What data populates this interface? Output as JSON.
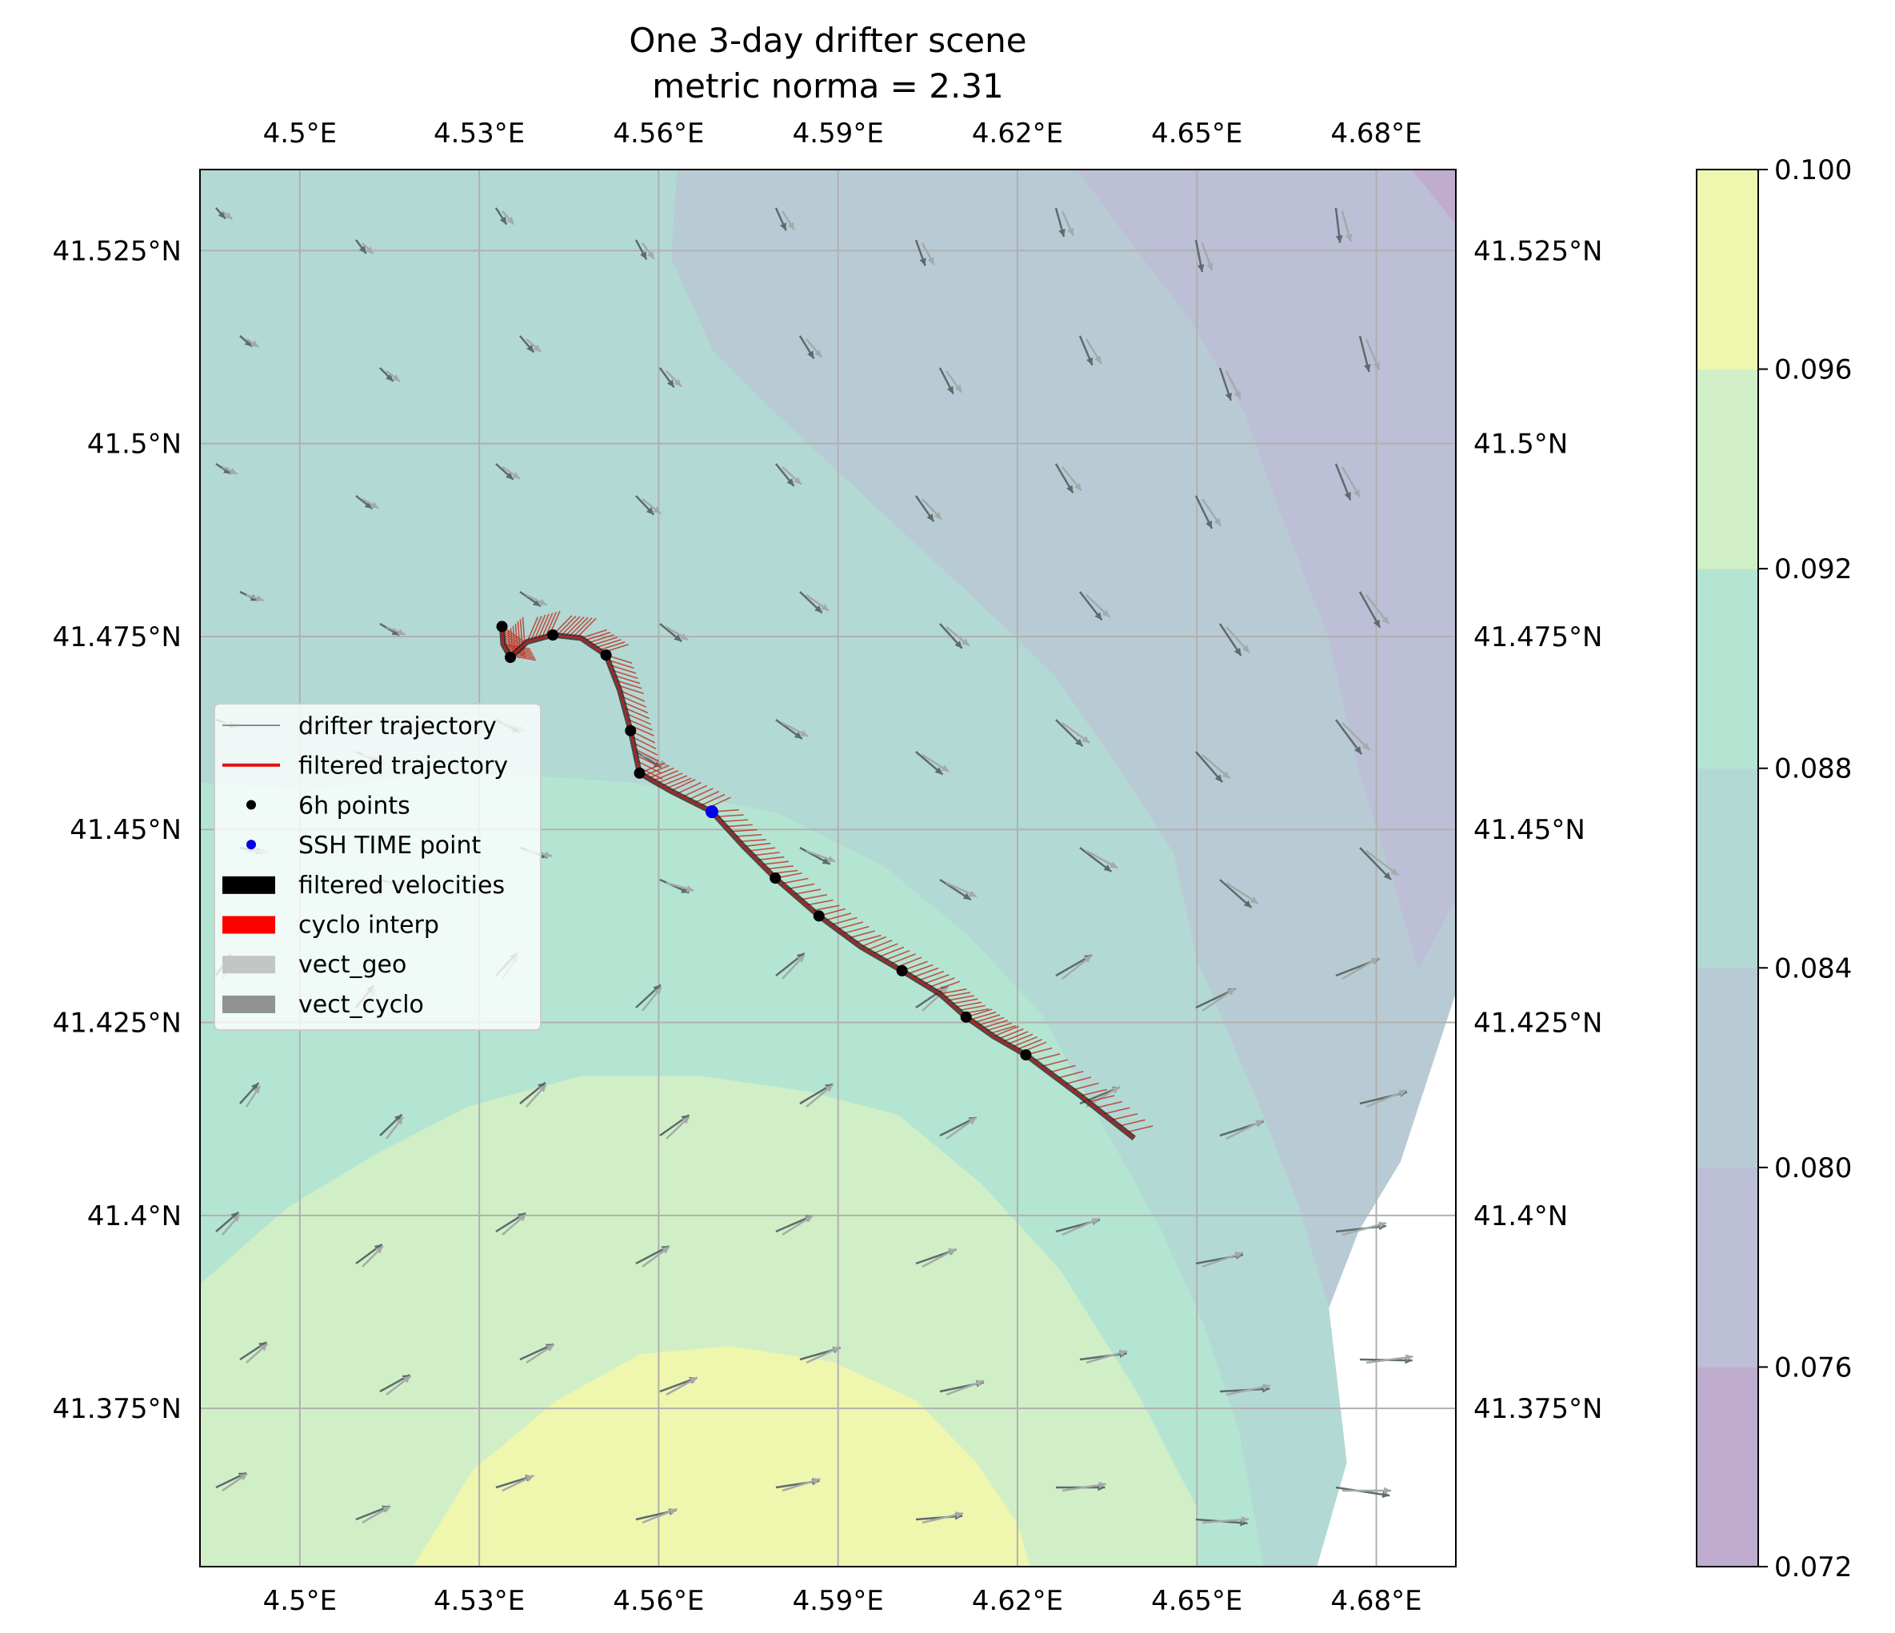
{
  "figure": {
    "title_line1": "One 3-day drifter scene",
    "title_line2": "metric norma = 2.31"
  },
  "chart_data": {
    "type": "contour-map",
    "title": "One 3-day drifter scene",
    "subtitle": "metric norma = 2.31",
    "xlim": [
      4.4833,
      4.6933
    ],
    "ylim": [
      41.3545,
      41.5355
    ],
    "x_ticks": [
      4.5,
      4.53,
      4.56,
      4.59,
      4.62,
      4.65,
      4.68
    ],
    "x_tick_labels": [
      "4.5°E",
      "4.53°E",
      "4.56°E",
      "4.59°E",
      "4.62°E",
      "4.65°E",
      "4.68°E"
    ],
    "y_ticks": [
      41.375,
      41.4,
      41.425,
      41.45,
      41.475,
      41.5,
      41.525
    ],
    "y_tick_labels": [
      "41.375°N",
      "41.4°N",
      "41.425°N",
      "41.45°N",
      "41.475°N",
      "41.5°N",
      "41.525°N"
    ],
    "grid": true,
    "colorbar": {
      "levels": [
        0.072,
        0.076,
        0.08,
        0.084,
        0.088,
        0.092,
        0.096,
        0.1
      ],
      "labels": [
        "0.072",
        "0.076",
        "0.080",
        "0.084",
        "0.088",
        "0.092",
        "0.096",
        "0.100"
      ],
      "colors": [
        "#c0acce",
        "#bcbfd6",
        "#b8cbd5",
        "#b3d9d4",
        "#b4e5d2",
        "#d1efc6",
        "#eff6ae"
      ]
    },
    "contour_regions": [
      {
        "level": "0.096-0.100",
        "color": "#eff6ae",
        "points": [
          [
            4.519,
            41.3545
          ],
          [
            4.529,
            41.367
          ],
          [
            4.543,
            41.376
          ],
          [
            4.557,
            41.382
          ],
          [
            4.572,
            41.383
          ],
          [
            4.589,
            41.381
          ],
          [
            4.603,
            41.376
          ],
          [
            4.613,
            41.368
          ],
          [
            4.62,
            41.36
          ],
          [
            4.622,
            41.3545
          ]
        ]
      },
      {
        "level": "0.092-0.096",
        "color": "#d1efc6",
        "points": [
          [
            4.4833,
            41.3545
          ],
          [
            4.4833,
            41.391
          ],
          [
            4.498,
            41.401
          ],
          [
            4.513,
            41.408
          ],
          [
            4.528,
            41.414
          ],
          [
            4.547,
            41.418
          ],
          [
            4.567,
            41.418
          ],
          [
            4.585,
            41.416
          ],
          [
            4.6,
            41.413
          ],
          [
            4.614,
            41.404
          ],
          [
            4.627,
            41.393
          ],
          [
            4.64,
            41.377
          ],
          [
            4.65,
            41.362
          ],
          [
            4.65,
            41.3545
          ]
        ]
      },
      {
        "level": "0.088-0.092",
        "color": "#b4e5d2",
        "points": [
          [
            4.4833,
            41.3545
          ],
          [
            4.4833,
            41.456
          ],
          [
            4.502,
            41.455
          ],
          [
            4.52,
            41.457
          ],
          [
            4.537,
            41.457
          ],
          [
            4.556,
            41.456
          ],
          [
            4.58,
            41.452
          ],
          [
            4.598,
            41.445
          ],
          [
            4.612,
            41.436
          ],
          [
            4.624,
            41.426
          ],
          [
            4.634,
            41.412
          ],
          [
            4.644,
            41.398
          ],
          [
            4.651,
            41.386
          ],
          [
            4.657,
            41.372
          ],
          [
            4.661,
            41.3545
          ]
        ]
      },
      {
        "level": "0.084-0.088",
        "color": "#b3d9d4",
        "points": [
          [
            4.4833,
            41.3545
          ],
          [
            4.4833,
            41.5355
          ],
          [
            4.563,
            41.5355
          ],
          [
            4.562,
            41.524
          ],
          [
            4.569,
            41.512
          ],
          [
            4.578,
            41.505
          ],
          [
            4.6,
            41.489
          ],
          [
            4.614,
            41.479
          ],
          [
            4.626,
            41.47
          ],
          [
            4.636,
            41.459
          ],
          [
            4.646,
            41.447
          ],
          [
            4.65,
            41.433
          ],
          [
            4.661,
            41.413
          ],
          [
            4.667,
            41.401
          ],
          [
            4.672,
            41.388
          ],
          [
            4.675,
            41.368
          ],
          [
            4.67,
            41.3545
          ],
          [
            4.661,
            41.3545
          ]
        ]
      },
      {
        "level": "0.080-0.084",
        "color": "#b8cbd5",
        "points": [
          [
            4.4833,
            41.3545
          ],
          [
            4.4833,
            41.5355
          ],
          [
            4.635,
            41.5355
          ],
          [
            4.64,
            41.525
          ],
          [
            4.649,
            41.516
          ],
          [
            4.658,
            41.504
          ],
          [
            4.664,
            41.491
          ],
          [
            4.672,
            41.475
          ],
          [
            4.677,
            41.458
          ],
          [
            4.683,
            41.443
          ],
          [
            4.687,
            41.432
          ],
          [
            4.6933,
            41.441
          ],
          [
            4.6933,
            41.429
          ],
          [
            4.684,
            41.407
          ],
          [
            4.677,
            41.398
          ],
          [
            4.668,
            41.38
          ],
          [
            4.662,
            41.3545
          ]
        ]
      },
      {
        "level": "0.076-0.080",
        "color": "#bcbfd6",
        "points": [
          [
            4.63,
            41.5355
          ],
          [
            4.6933,
            41.5355
          ],
          [
            4.6933,
            41.441
          ],
          [
            4.687,
            41.432
          ],
          [
            4.683,
            41.443
          ],
          [
            4.677,
            41.458
          ],
          [
            4.672,
            41.475
          ],
          [
            4.664,
            41.491
          ],
          [
            4.658,
            41.504
          ],
          [
            4.649,
            41.516
          ],
          [
            4.64,
            41.525
          ]
        ]
      },
      {
        "level": "0.072-0.076",
        "color": "#c0acce",
        "points": [
          [
            4.686,
            41.5355
          ],
          [
            4.6933,
            41.5355
          ],
          [
            4.6933,
            41.5285
          ]
        ]
      }
    ],
    "drifter_trajectory": [
      [
        4.5338,
        41.4763
      ],
      [
        4.534,
        41.474
      ],
      [
        4.5352,
        41.4723
      ],
      [
        4.538,
        41.4743
      ],
      [
        4.5423,
        41.4752
      ],
      [
        4.547,
        41.4748
      ],
      [
        4.5512,
        41.4726
      ],
      [
        4.5535,
        41.468
      ],
      [
        4.5553,
        41.4628
      ],
      [
        4.5568,
        41.4573
      ],
      [
        4.562,
        41.455
      ],
      [
        4.5689,
        41.4523
      ],
      [
        4.5742,
        41.4478
      ],
      [
        4.5795,
        41.4437
      ],
      [
        4.5868,
        41.4388
      ],
      [
        4.5938,
        41.4348
      ],
      [
        4.6007,
        41.4317
      ],
      [
        4.607,
        41.4287
      ],
      [
        4.6114,
        41.4257
      ],
      [
        4.616,
        41.4232
      ],
      [
        4.6214,
        41.4208
      ],
      [
        4.6305,
        41.4155
      ],
      [
        4.6395,
        41.41
      ]
    ],
    "six_hour_points": [
      [
        4.5338,
        41.4763
      ],
      [
        4.5352,
        41.4723
      ],
      [
        4.5423,
        41.4752
      ],
      [
        4.5512,
        41.4726
      ],
      [
        4.5553,
        41.4628
      ],
      [
        4.5568,
        41.4573
      ],
      [
        4.5795,
        41.4437
      ],
      [
        4.5868,
        41.4388
      ],
      [
        4.6007,
        41.4317
      ],
      [
        4.6114,
        41.4257
      ],
      [
        4.6214,
        41.4208
      ]
    ],
    "ssh_time_point": [
      4.5689,
      41.4523
    ],
    "legend": {
      "placement": "center-left",
      "entries": [
        "drifter trajectory",
        "filtered trajectory",
        "6h points",
        "SSH TIME point",
        "filtered velocities",
        "cyclo interp",
        "vect_geo",
        "vect_cyclo"
      ]
    },
    "legend_colors": {
      "drifter trajectory": "#8c8c8c",
      "filtered trajectory": "#e01010",
      "6h points": "#000000",
      "SSH TIME point": "#0000ee",
      "filtered velocities": "#000000",
      "cyclo interp": "#ff0000",
      "vect_geo": "#c2c6c6",
      "vect_cyclo": "#8f9393"
    }
  }
}
